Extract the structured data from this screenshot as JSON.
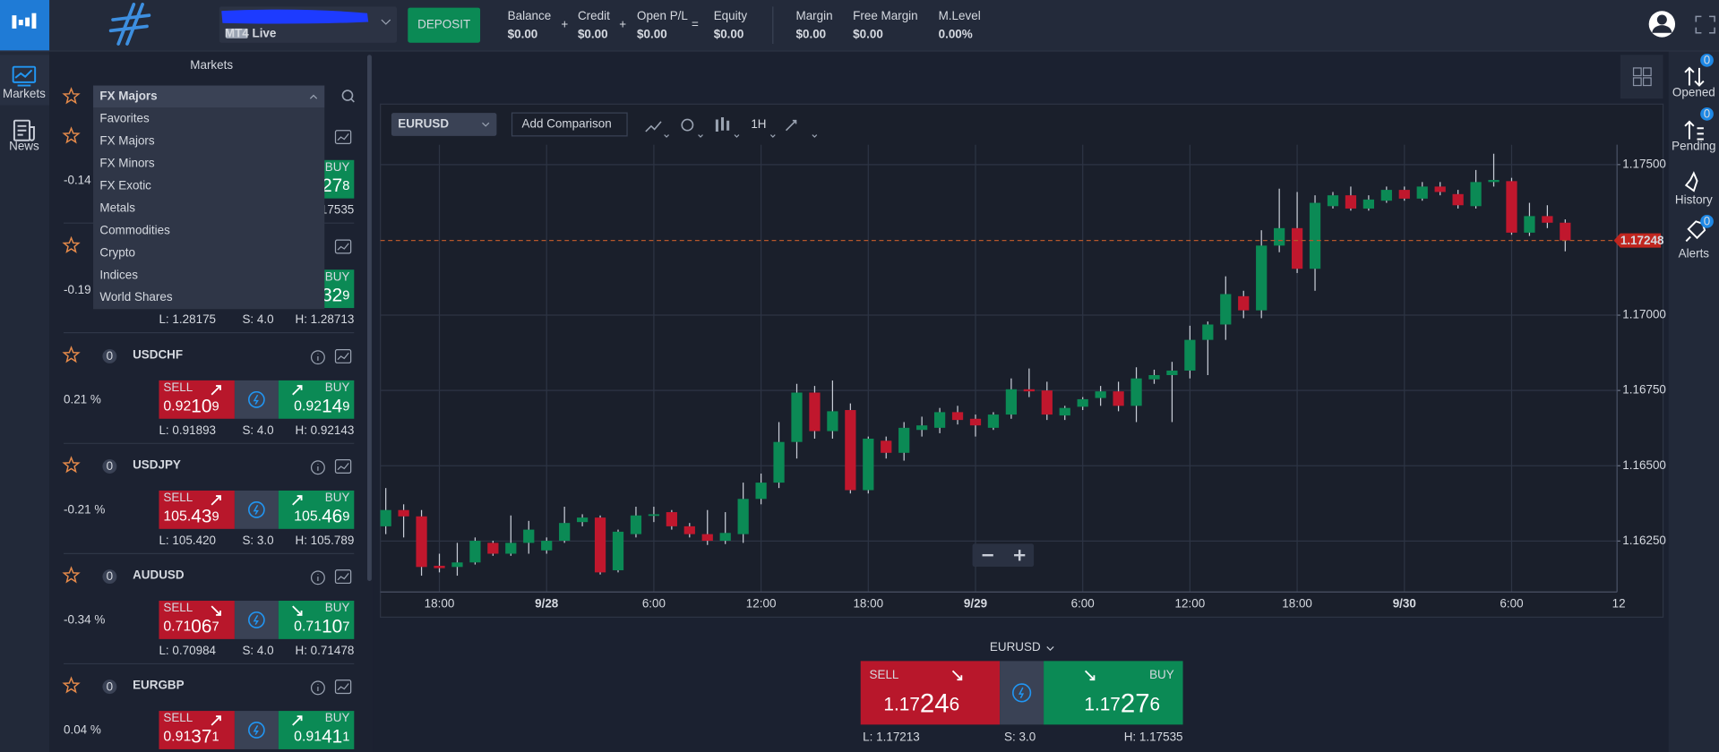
{
  "topbar": {
    "account_badges": [
      {
        "label": "MT4",
        "color": "#9aa3b2"
      },
      {
        "label": "Live",
        "color": "#19c37d"
      }
    ],
    "deposit": "DEPOSIT",
    "stats": [
      {
        "label": "Balance",
        "value": "$0.00",
        "color": "#ffffff"
      },
      {
        "label": "Credit",
        "value": "$0.00",
        "color": "#ffffff"
      },
      {
        "label": "Open P/L",
        "value": "$0.00",
        "color": "#ffffff"
      },
      {
        "label": "Equity",
        "value": "$0.00",
        "color": "#ffffff"
      },
      {
        "label": "Margin",
        "value": "$0.00",
        "color": "#2196f3"
      },
      {
        "label": "Free Margin",
        "value": "$0.00",
        "color": "#ffffff"
      },
      {
        "label": "M.Level",
        "value": "0.00%",
        "color": "#ffffff"
      }
    ],
    "operators": [
      "+",
      "+",
      "="
    ]
  },
  "nav": [
    "Markets",
    "News"
  ],
  "markets": {
    "title": "Markets",
    "selected": "FX Majors",
    "options": [
      {
        "label": "Favorites",
        "color": "#d5d9e0"
      },
      {
        "label": "FX Majors",
        "color": "#7d8597"
      },
      {
        "label": "FX Minors",
        "color": "#2196f3"
      },
      {
        "label": "FX Exotic",
        "color": "#d5d9e0"
      },
      {
        "label": "Metals",
        "color": "#d5d9e0"
      },
      {
        "label": "Commodities",
        "color": "#d5d9e0"
      },
      {
        "label": "Crypto",
        "color": "#d5d9e0"
      },
      {
        "label": "Indices",
        "color": "#d5d9e0"
      },
      {
        "label": "World Shares",
        "color": "#d5d9e0"
      }
    ],
    "partial_rows": [
      {
        "change": "-0.14",
        "buy": {
          "label": "BUY",
          "price": [
            "27",
            "8"
          ]
        },
        "stats": [
          "17535"
        ]
      },
      {
        "change": "-0.19",
        "buy": {
          "label": "BUY",
          "price": [
            "32",
            "9"
          ]
        },
        "stats": [
          "L: 1.28175",
          "S: 4.0",
          "H: 1.28713"
        ]
      }
    ],
    "rows": [
      {
        "name": "USDCHF",
        "badge": "0",
        "change": "0.21 %",
        "arrow": "up",
        "sell": {
          "label": "SELL",
          "price": [
            "0.92",
            "10",
            "9"
          ]
        },
        "buy": {
          "label": "BUY",
          "price": [
            "0.92",
            "14",
            "9"
          ]
        },
        "stats": [
          "L: 0.91893",
          "S: 4.0",
          "H: 0.92143"
        ]
      },
      {
        "name": "USDJPY",
        "badge": "0",
        "change": "-0.21 %",
        "arrow": "up",
        "sell": {
          "label": "SELL",
          "price": [
            "105.",
            "43",
            "9"
          ]
        },
        "buy": {
          "label": "BUY",
          "price": [
            "105.",
            "46",
            "9"
          ]
        },
        "stats": [
          "L: 105.420",
          "S: 3.0",
          "H: 105.789"
        ]
      },
      {
        "name": "AUDUSD",
        "badge": "0",
        "change": "-0.34 %",
        "arrow": "down",
        "sell": {
          "label": "SELL",
          "price": [
            "0.71",
            "06",
            "7"
          ]
        },
        "buy": {
          "label": "BUY",
          "price": [
            "0.71",
            "10",
            "7"
          ]
        },
        "stats": [
          "L: 0.70984",
          "S: 4.0",
          "H: 0.71478"
        ]
      },
      {
        "name": "EURGBP",
        "badge": "0",
        "change": "0.04 %",
        "arrow": "up",
        "sell": {
          "label": "SELL",
          "price": [
            "0.91",
            "37",
            "1"
          ]
        },
        "buy": {
          "label": "BUY",
          "price": [
            "0.91",
            "41",
            "1"
          ]
        },
        "stats": []
      }
    ]
  },
  "chart": {
    "type": "candlestick",
    "symbol": "EURUSD",
    "comparison": "Add Comparison",
    "interval": "1H",
    "up_color": "#0b8a55",
    "down_color": "#c0172d",
    "grid": true,
    "xlim": [
      -0.3,
      68.9
    ],
    "xticks": [
      {
        "value": 3,
        "label": "18:00"
      },
      {
        "value": 9,
        "label": "9/28"
      },
      {
        "value": 15,
        "label": "6:00"
      },
      {
        "value": 21,
        "label": "12:00"
      },
      {
        "value": 27,
        "label": "18:00"
      },
      {
        "value": 33,
        "label": "9/29"
      },
      {
        "value": 39,
        "label": "6:00"
      },
      {
        "value": 45,
        "label": "12:00"
      },
      {
        "value": 51,
        "label": "18:00"
      },
      {
        "value": 57,
        "label": "9/30"
      },
      {
        "value": 63,
        "label": "6:00"
      },
      {
        "value": 69,
        "label": "12"
      }
    ],
    "ylim": [
      1.16081,
      1.17566
    ],
    "yticks": [
      {
        "value": 1.175,
        "label": "1.17500"
      },
      {
        "value": 1.17,
        "label": "1.17000"
      },
      {
        "value": 1.1675,
        "label": "1.16750"
      },
      {
        "value": 1.165,
        "label": "1.16500"
      },
      {
        "value": 1.1625,
        "label": "1.16250"
      }
    ],
    "last_price": 1.17248,
    "open": [
      1.16299,
      1.16353,
      1.16332,
      1.16168,
      1.16164,
      1.16179,
      1.16244,
      1.16208,
      1.16244,
      1.16219,
      1.16251,
      1.16313,
      1.16328,
      1.16153,
      1.16273,
      1.16335,
      1.16346,
      1.16299,
      1.16273,
      1.16251,
      1.16273,
      1.1639,
      1.16444,
      1.16579,
      1.16743,
      1.16615,
      1.16685,
      1.16419,
      1.16583,
      1.16543,
      1.16619,
      1.16626,
      1.16678,
      1.16656,
      1.16626,
      1.1667,
      1.16754,
      1.1675,
      1.16667,
      1.16696,
      1.16725,
      1.16747,
      1.16699,
      1.16787,
      1.16801,
      1.16816,
      1.16918,
      1.16969,
      1.17063,
      1.17016,
      1.17231,
      1.17289,
      1.17154,
      1.17362,
      1.17398,
      1.17354,
      1.1738,
      1.17416,
      1.17387,
      1.17427,
      1.17402,
      1.17362,
      1.17442,
      1.17445,
      1.17274,
      1.17329,
      1.17307
    ],
    "high": [
      1.16426,
      1.16372,
      1.16353,
      1.16208,
      1.16244,
      1.16262,
      1.16251,
      1.16335,
      1.16317,
      1.16262,
      1.16364,
      1.16339,
      1.16335,
      1.16288,
      1.16364,
      1.16364,
      1.16353,
      1.1631,
      1.16353,
      1.16346,
      1.16444,
      1.16474,
      1.16645,
      1.16772,
      1.16765,
      1.16783,
      1.16707,
      1.16597,
      1.16597,
      1.16645,
      1.16663,
      1.16692,
      1.16699,
      1.1667,
      1.16678,
      1.1679,
      1.16823,
      1.16779,
      1.16699,
      1.16728,
      1.16765,
      1.16779,
      1.16827,
      1.16819,
      1.16845,
      1.16965,
      1.16979,
      1.17129,
      1.17081,
      1.17282,
      1.1742,
      1.17409,
      1.17398,
      1.17409,
      1.17427,
      1.17398,
      1.17427,
      1.17427,
      1.17442,
      1.17442,
      1.17416,
      1.17482,
      1.17536,
      1.17456,
      1.17373,
      1.17365,
      1.17318
    ],
    "low": [
      1.16273,
      1.16262,
      1.16135,
      1.16146,
      1.16135,
      1.16172,
      1.16201,
      1.16201,
      1.16208,
      1.16208,
      1.16244,
      1.16299,
      1.16139,
      1.16146,
      1.16262,
      1.16313,
      1.16288,
      1.16262,
      1.16237,
      1.1624,
      1.16244,
      1.16372,
      1.16426,
      1.16524,
      1.1659,
      1.1659,
      1.16408,
      1.16408,
      1.16524,
      1.16517,
      1.16597,
      1.16608,
      1.16637,
      1.16597,
      1.16619,
      1.16656,
      1.16728,
      1.16652,
      1.16652,
      1.16685,
      1.16699,
      1.16681,
      1.16645,
      1.16772,
      1.16645,
      1.1679,
      1.16801,
      1.16918,
      1.1699,
      1.1699,
      1.17209,
      1.1714,
      1.17081,
      1.17354,
      1.17347,
      1.17347,
      1.17373,
      1.1738,
      1.1738,
      1.17398,
      1.17354,
      1.17354,
      1.17427,
      1.17267,
      1.17263,
      1.17289,
      1.17212
    ],
    "close": [
      1.16353,
      1.16332,
      1.16164,
      1.1616,
      1.16179,
      1.16251,
      1.16208,
      1.16244,
      1.16288,
      1.16251,
      1.1631,
      1.16328,
      1.16146,
      1.16281,
      1.16335,
      1.16339,
      1.16299,
      1.16273,
      1.16251,
      1.16277,
      1.1639,
      1.16444,
      1.16579,
      1.16743,
      1.16615,
      1.16681,
      1.16419,
      1.1659,
      1.16543,
      1.16626,
      1.16634,
      1.16678,
      1.16652,
      1.16634,
      1.1667,
      1.16754,
      1.16747,
      1.1667,
      1.16692,
      1.16721,
      1.16747,
      1.16699,
      1.1679,
      1.16801,
      1.16816,
      1.16918,
      1.16969,
      1.1707,
      1.17016,
      1.17231,
      1.17289,
      1.17154,
      1.17373,
      1.17398,
      1.17354,
      1.17384,
      1.17416,
      1.17387,
      1.17427,
      1.17409,
      1.17365,
      1.17442,
      1.17449,
      1.17274,
      1.17329,
      1.17307,
      1.17248
    ]
  },
  "trade": {
    "symbol": "EURUSD",
    "sell": {
      "label": "SELL",
      "price": [
        "1.17",
        "24",
        "6"
      ]
    },
    "buy": {
      "label": "BUY",
      "price": [
        "1.17",
        "27",
        "6"
      ]
    },
    "stats": [
      "L: 1.17213",
      "S: 3.0",
      "H: 1.17535"
    ]
  },
  "right_nav": [
    {
      "label": "Opened",
      "badge": "0"
    },
    {
      "label": "Pending",
      "badge": "0"
    },
    {
      "label": "History"
    },
    {
      "label": "Alerts",
      "badge": "0"
    }
  ]
}
